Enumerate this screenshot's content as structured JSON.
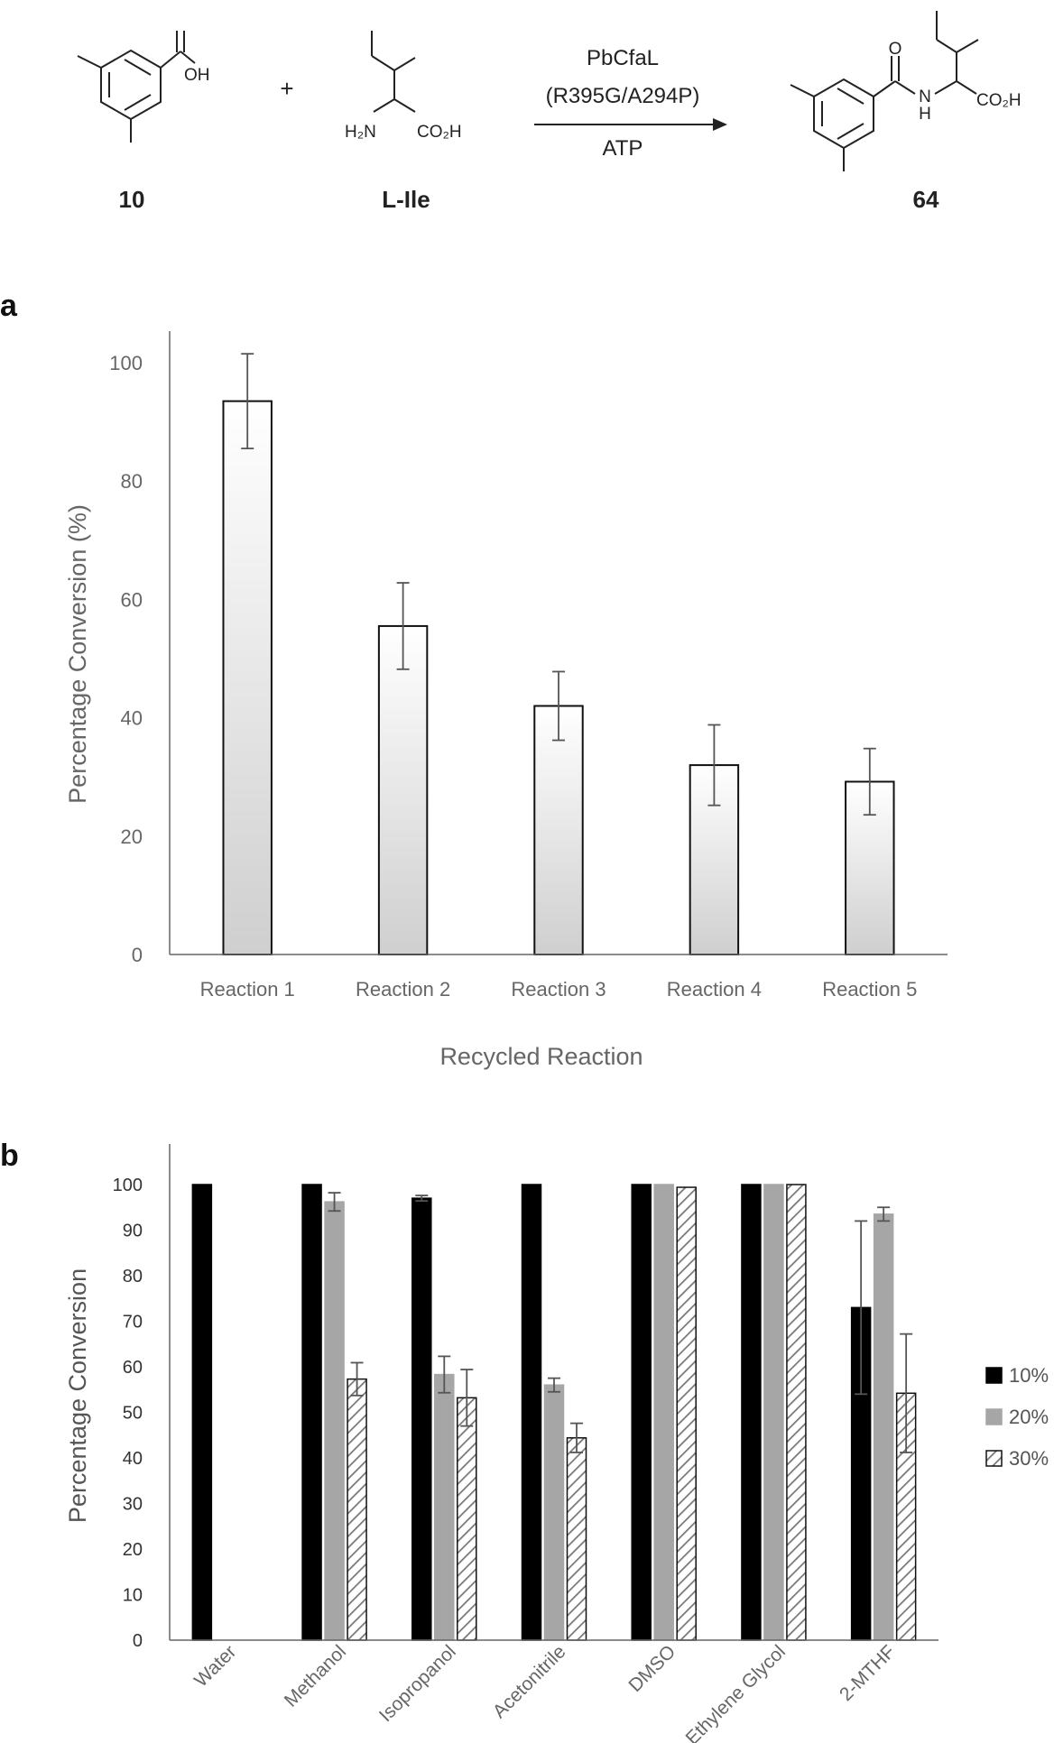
{
  "scheme": {
    "compound_left_label": "10",
    "compound_left_group": "OH",
    "plus": "+",
    "compound_mid_label": "L-Ile",
    "compound_mid_amine": "H₂N",
    "compound_mid_acid": "CO₂H",
    "enzyme_line1": "PbCfaL",
    "enzyme_line2": "(R395G/A294P)",
    "cofactor": "ATP",
    "product_label": "64",
    "product_atom_O": "O",
    "product_atom_N": "N",
    "product_atom_H": "H",
    "product_acid": "CO₂H"
  },
  "chart_data": [
    {
      "panel": "a",
      "type": "bar",
      "title": "",
      "xlabel": "Recycled Reaction",
      "ylabel": "Percentage Conversion (%)",
      "ylim": [
        0,
        105
      ],
      "yticks": [
        0,
        20,
        40,
        60,
        80,
        100
      ],
      "categories": [
        "Reaction 1",
        "Reaction 2",
        "Reaction 3",
        "Reaction 4",
        "Reaction 5"
      ],
      "values": [
        93.5,
        55.5,
        42,
        32,
        29.2
      ],
      "errors": [
        8,
        7.3,
        5.8,
        6.8,
        5.6
      ],
      "fill": "gradient-light-grey"
    },
    {
      "panel": "b",
      "type": "bar",
      "title": "",
      "xlabel": "",
      "ylabel": "Percentage Conversion",
      "ylim": [
        0,
        105
      ],
      "yticks": [
        0,
        10,
        20,
        30,
        40,
        50,
        60,
        70,
        80,
        90,
        100
      ],
      "categories": [
        "Water",
        "Methanol",
        "Isopropanol",
        "Acetonitrile",
        "DMSO",
        "Ethylene Glycol",
        "2-MTHF"
      ],
      "legend_position": "right",
      "series": [
        {
          "name": "10%",
          "color": "#000000",
          "values": [
            100,
            100,
            97,
            100,
            100,
            100,
            73
          ],
          "errors": [
            0,
            0,
            0.6,
            0,
            0,
            0,
            19
          ]
        },
        {
          "name": "20%",
          "color": "#a6a6a6",
          "values": [
            null,
            96.2,
            58.3,
            56,
            100,
            100,
            93.5
          ],
          "errors": [
            0,
            2,
            4,
            1.5,
            0,
            0,
            1.5
          ]
        },
        {
          "name": "30%",
          "color": "#ffffff",
          "pattern": "hatch",
          "values": [
            null,
            57.3,
            53.2,
            44.4,
            99.4,
            100,
            54.2
          ],
          "errors": [
            0,
            3.6,
            6.2,
            3.2,
            0,
            0,
            13
          ]
        }
      ]
    }
  ]
}
